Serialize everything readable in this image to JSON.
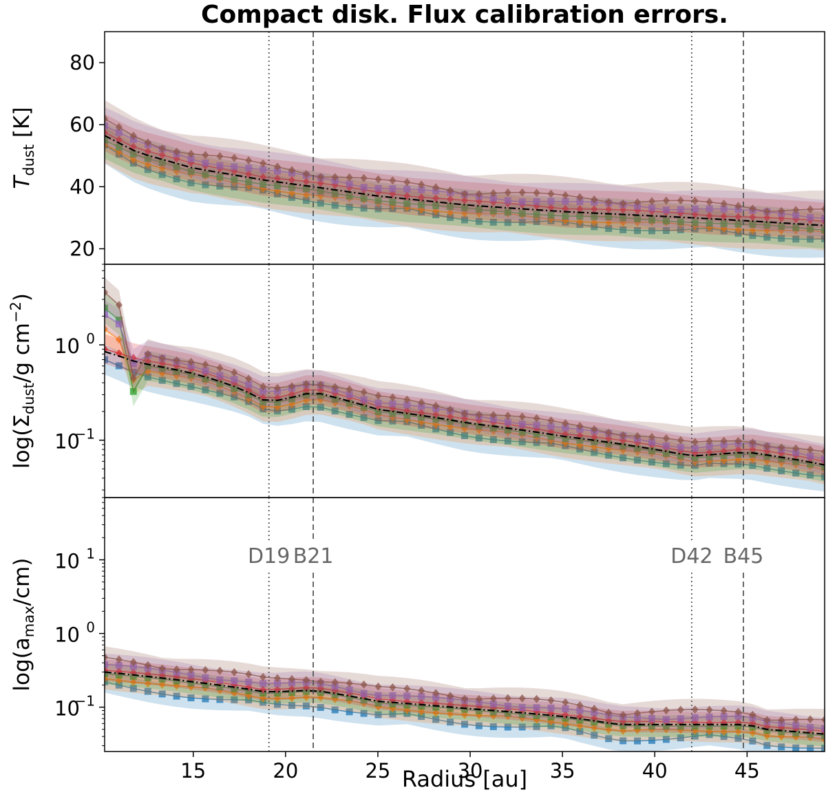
{
  "chart_data": {
    "type": "line",
    "title": "Compact disk. Flux calibration errors.",
    "xlabel": "Radius [au]",
    "xlim": [
      10.2,
      49.2
    ],
    "xticks": [
      15,
      20,
      25,
      30,
      35,
      40,
      45
    ],
    "grid": false,
    "vlines": [
      {
        "label": "D19",
        "x": 19.1,
        "style": "dotted"
      },
      {
        "label": "B21",
        "x": 21.5,
        "style": "dashed"
      },
      {
        "label": "D42",
        "x": 42.0,
        "style": "dotted"
      },
      {
        "label": "B45",
        "x": 44.8,
        "style": "dashed"
      }
    ],
    "colors": [
      "#1f77b4",
      "#ff7f0e",
      "#2ca02c",
      "#d62728",
      "#9467bd",
      "#8c564b",
      "#e377c2",
      "#bcbd22",
      "#17becf",
      "#7f7f7f"
    ],
    "panels": [
      {
        "name": "T_dust",
        "ylabel_main": "T",
        "ylabel_sub": "dust",
        "ylabel_unit": " [K]",
        "yscale": "linear",
        "ylim": [
          15,
          90
        ],
        "yticks": [
          {
            "v": 20,
            "label": "20"
          },
          {
            "v": 40,
            "label": "40"
          },
          {
            "v": 60,
            "label": "60"
          },
          {
            "v": 80,
            "label": "80"
          }
        ],
        "x": [
          10.2,
          12,
          15,
          19,
          21.5,
          25,
          30,
          35,
          42,
          45,
          49.2
        ],
        "reference": [
          56.5,
          51,
          46,
          42,
          40,
          37,
          34,
          32,
          30,
          29,
          27.5
        ],
        "band": {
          "offsets": [
            -5,
            -3,
            -1.5,
            1.5,
            3.5,
            5.5
          ],
          "spread": 6
        }
      },
      {
        "name": "Sigma_dust",
        "ylabel_pre": "log(Σ",
        "ylabel_sub": "dust",
        "ylabel_post": "/g cm",
        "ylabel_sup": "−2",
        "ylabel_end": ")",
        "yscale": "log",
        "ylim": [
          0.025,
          7
        ],
        "yticks": [
          {
            "v": 1,
            "base": "10",
            "exp": "0"
          },
          {
            "v": 0.1,
            "base": "10",
            "exp": "−1"
          }
        ],
        "x": [
          10.2,
          12,
          15,
          17,
          19,
          20,
          21.5,
          23,
          25,
          30,
          35,
          40,
          42,
          45,
          49.2
        ],
        "reference": [
          0.85,
          0.65,
          0.5,
          0.38,
          0.25,
          0.27,
          0.32,
          0.27,
          0.21,
          0.15,
          0.11,
          0.08,
          0.068,
          0.075,
          0.055
        ],
        "inner_spike": [
          3.0,
          2.5,
          0.5
        ],
        "band": {
          "factors": [
            0.72,
            0.85,
            0.95,
            1.1,
            1.25,
            1.4
          ],
          "spread": 0.18
        }
      },
      {
        "name": "a_max",
        "ylabel_pre": "log(a",
        "ylabel_sub": "max",
        "ylabel_post": "/cm)",
        "yscale": "log",
        "ylim": [
          0.025,
          70
        ],
        "yticks": [
          {
            "v": 10,
            "base": "10",
            "exp": "1"
          },
          {
            "v": 1,
            "base": "10",
            "exp": "0"
          },
          {
            "v": 0.1,
            "base": "10",
            "exp": "−1"
          }
        ],
        "x": [
          10.2,
          12,
          15,
          19,
          21.5,
          25,
          30,
          35,
          38,
          42,
          45,
          46,
          49.2
        ],
        "reference": [
          0.3,
          0.27,
          0.22,
          0.16,
          0.17,
          0.12,
          0.095,
          0.075,
          0.058,
          0.058,
          0.058,
          0.05,
          0.043
        ],
        "band": {
          "factors": [
            0.6,
            0.8,
            0.95,
            1.1,
            1.3,
            1.6
          ],
          "spread": 0.15
        }
      }
    ]
  }
}
